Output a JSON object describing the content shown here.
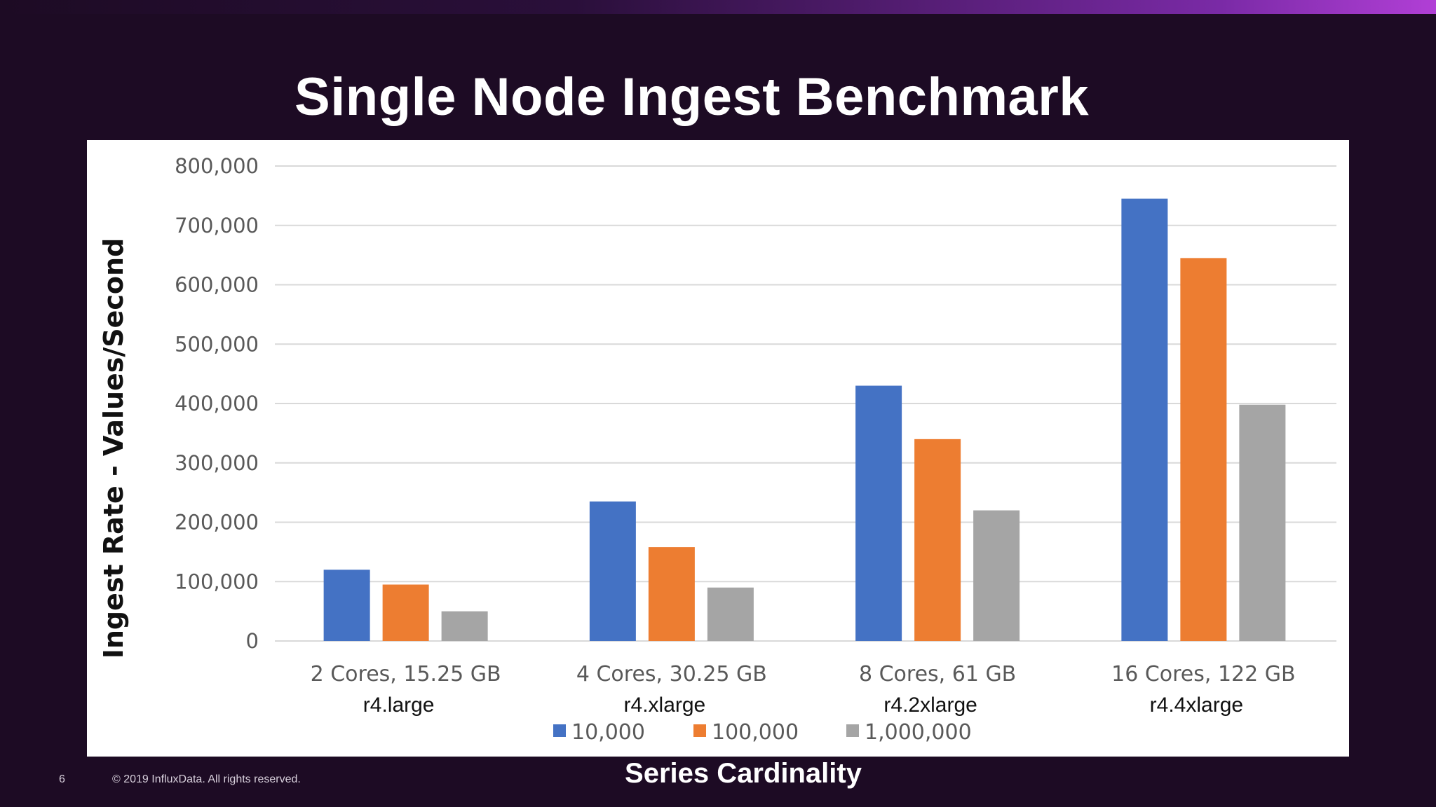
{
  "slide": {
    "title": "Single Node Ingest Benchmark",
    "page_number": "6",
    "copyright": "© 2019 InfluxData. All rights reserved."
  },
  "colors": {
    "background": "#1d0b24",
    "series_10000": "#4472c4",
    "series_100000": "#ed7d31",
    "series_1000000": "#a5a5a5"
  },
  "chart_data": {
    "type": "bar",
    "title": "",
    "xlabel": "Series Cardinality",
    "ylabel": "Ingest Rate - Values/Second",
    "categories": [
      "2 Cores, 15.25 GB",
      "4 Cores, 30.25 GB",
      "8 Cores, 61 GB",
      "16 Cores, 122 GB"
    ],
    "instance_labels": [
      "r4.large",
      "r4.xlarge",
      "r4.2xlarge",
      "r4.4xlarge"
    ],
    "series": [
      {
        "name": "10,000",
        "color": "#4472c4",
        "values": [
          120000,
          235000,
          430000,
          745000
        ]
      },
      {
        "name": "100,000",
        "color": "#ed7d31",
        "values": [
          95000,
          158000,
          340000,
          645000
        ]
      },
      {
        "name": "1,000,000",
        "color": "#a5a5a5",
        "values": [
          50000,
          90000,
          220000,
          398000
        ]
      }
    ],
    "ylim": [
      0,
      800000
    ],
    "yticks": [
      0,
      100000,
      200000,
      300000,
      400000,
      500000,
      600000,
      700000,
      800000
    ],
    "ytick_labels": [
      "0",
      "100,000",
      "200,000",
      "300,000",
      "400,000",
      "500,000",
      "600,000",
      "700,000",
      "800,000"
    ],
    "grid": true,
    "legend_position": "bottom"
  }
}
